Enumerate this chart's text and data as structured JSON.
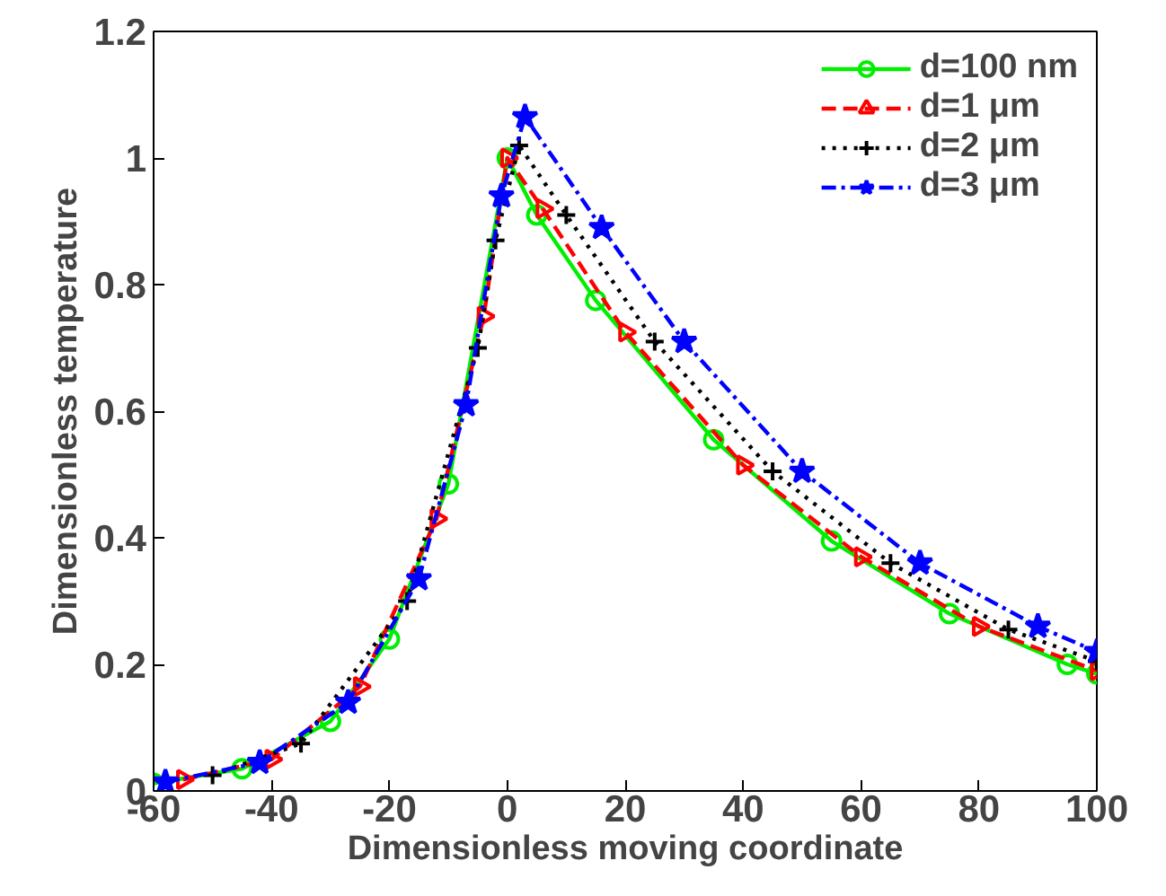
{
  "chart_data": {
    "type": "line",
    "xlabel": "Dimensionless moving coordinate",
    "ylabel": "Dimensionless temperature",
    "xlim": [
      -60,
      100
    ],
    "ylim": [
      0,
      1.2
    ],
    "xticks": [
      -60,
      -40,
      -20,
      0,
      20,
      40,
      60,
      80,
      100
    ],
    "yticks": [
      0,
      0.2,
      0.4,
      0.6,
      0.8,
      1,
      1.2
    ],
    "grid": false,
    "legend": "top right",
    "series": [
      {
        "name": "d=100 nm",
        "color": "#00ee00",
        "marker": "circle",
        "line_style": "solid",
        "x": [
          -60,
          -45,
          -30,
          -20,
          -10,
          0,
          5,
          15,
          35,
          55,
          75,
          95,
          100
        ],
        "values": [
          0.012,
          0.035,
          0.11,
          0.24,
          0.485,
          1.0,
          0.91,
          0.775,
          0.555,
          0.395,
          0.28,
          0.2,
          0.185
        ]
      },
      {
        "name": "d=1 μm",
        "color": "#ff0000",
        "marker": "triangle",
        "line_style": "dashed",
        "x": [
          -55,
          -40,
          -25,
          -12,
          -4,
          0,
          6,
          20,
          40,
          60,
          80,
          100
        ],
        "values": [
          0.018,
          0.05,
          0.165,
          0.43,
          0.75,
          1.0,
          0.92,
          0.725,
          0.515,
          0.37,
          0.26,
          0.19
        ]
      },
      {
        "name": "d=2 μm",
        "color": "#000000",
        "marker": "cross",
        "line_style": "dotted",
        "x": [
          -50,
          -35,
          -17,
          -5,
          -2,
          2,
          10,
          25,
          45,
          65,
          85,
          100
        ],
        "values": [
          0.025,
          0.075,
          0.3,
          0.7,
          0.87,
          1.02,
          0.91,
          0.71,
          0.505,
          0.36,
          0.255,
          0.205
        ]
      },
      {
        "name": "d=3 μm",
        "color": "#0000ff",
        "marker": "star",
        "line_style": "dashdot",
        "x": [
          -58,
          -42,
          -27,
          -15,
          -7,
          -1,
          3,
          16,
          30,
          50,
          70,
          90,
          100
        ],
        "values": [
          0.014,
          0.045,
          0.14,
          0.335,
          0.61,
          0.94,
          1.065,
          0.89,
          0.71,
          0.505,
          0.36,
          0.26,
          0.22
        ]
      }
    ]
  }
}
